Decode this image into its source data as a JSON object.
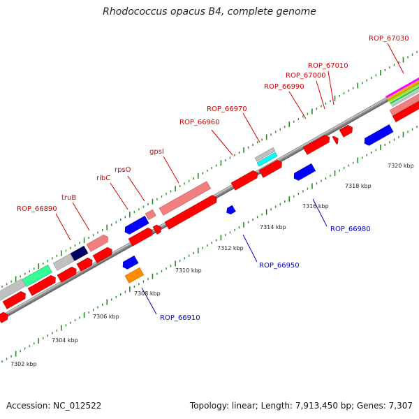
{
  "title": "Rhodococcus opacus B4, complete genome",
  "footer": {
    "accession": "Accession: NC_012522",
    "summary": "Topology: linear; Length: 7,913,450 bp; Genes: 7,307"
  },
  "colors": {
    "forward_label": "#d40000",
    "reverse_label": "#0000c8",
    "cds": "#ff0000",
    "rna": "#f08080",
    "cds_reverse": "#0000ff",
    "orange": "#ff8c00",
    "cyan": "#00ffff",
    "green": "#33ff99",
    "navy": "#000066",
    "gray": "#c0c0c0",
    "backbone": "#808080",
    "tick": "#228b22"
  },
  "scale_labels": [
    "7302 kbp",
    "7304 kbp",
    "7306 kbp",
    "7308 kbp",
    "7310 kbp",
    "7312 kbp",
    "7314 kbp",
    "7316 kbp",
    "7318 kbp",
    "7320 kbp"
  ],
  "gene_labels": {
    "forward": [
      "ROP_66890",
      "truB",
      "ribC",
      "rpsO",
      "gpsI",
      "ROP_66960",
      "ROP_66970",
      "ROP_66990",
      "ROP_67000",
      "ROP_67010",
      "ROP_67030"
    ],
    "reverse": [
      "ROP_66910",
      "ROP_66950",
      "ROP_66980"
    ]
  }
}
